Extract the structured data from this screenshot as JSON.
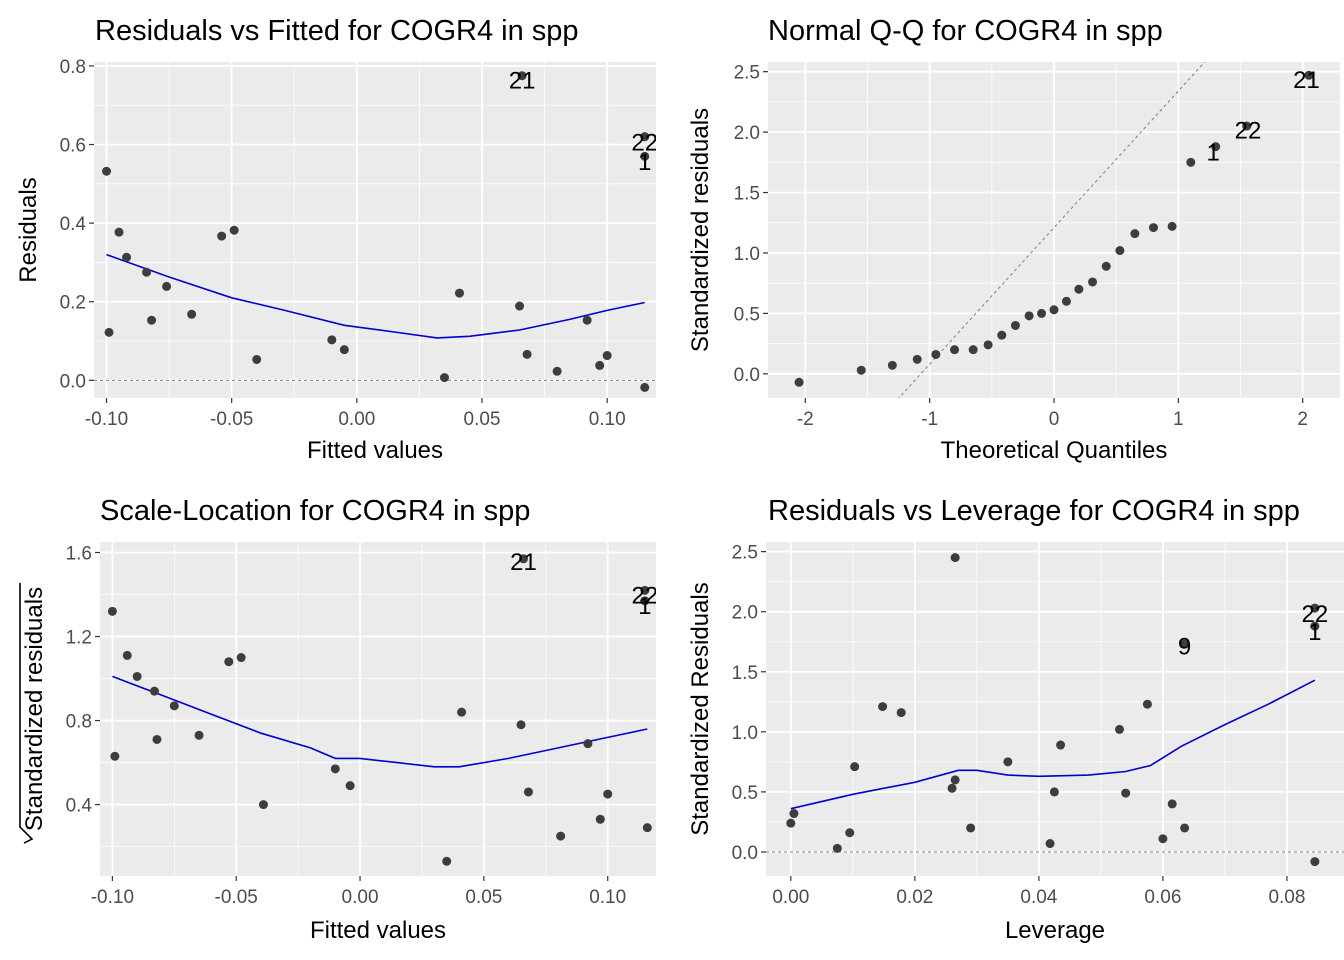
{
  "chart_data": [
    {
      "id": "rvf",
      "type": "scatter",
      "title": "Residuals vs Fitted for COGR4 in spp",
      "xlabel": "Fitted values",
      "ylabel": "Residuals",
      "ylabel_sqrt": false,
      "xlim": [
        -0.105,
        0.1195
      ],
      "ylim": [
        -0.045,
        0.81
      ],
      "xticks": [
        -0.1,
        -0.05,
        0.0,
        0.05,
        0.1
      ],
      "xtick_labels": [
        "-0.10",
        "-0.05",
        "0.00",
        "0.05",
        "0.10"
      ],
      "yticks": [
        0.0,
        0.2,
        0.4,
        0.6,
        0.8
      ],
      "ytick_labels": [
        "0.0",
        "0.2",
        "0.4",
        "0.6",
        "0.8"
      ],
      "grid": true,
      "hline": 0,
      "diag": null,
      "points": [
        {
          "x": -0.1,
          "y": 0.532
        },
        {
          "x": -0.095,
          "y": 0.377
        },
        {
          "x": -0.092,
          "y": 0.313
        },
        {
          "x": -0.099,
          "y": 0.122
        },
        {
          "x": -0.084,
          "y": 0.275
        },
        {
          "x": -0.082,
          "y": 0.153
        },
        {
          "x": -0.076,
          "y": 0.239
        },
        {
          "x": -0.066,
          "y": 0.168
        },
        {
          "x": -0.054,
          "y": 0.367
        },
        {
          "x": -0.049,
          "y": 0.382
        },
        {
          "x": -0.04,
          "y": 0.053
        },
        {
          "x": -0.01,
          "y": 0.103
        },
        {
          "x": -0.005,
          "y": 0.078
        },
        {
          "x": 0.035,
          "y": 0.007
        },
        {
          "x": 0.041,
          "y": 0.222
        },
        {
          "x": 0.065,
          "y": 0.189
        },
        {
          "x": 0.066,
          "y": 0.775
        },
        {
          "x": 0.068,
          "y": 0.066
        },
        {
          "x": 0.08,
          "y": 0.023
        },
        {
          "x": 0.092,
          "y": 0.153
        },
        {
          "x": 0.097,
          "y": 0.038
        },
        {
          "x": 0.1,
          "y": 0.063
        },
        {
          "x": 0.115,
          "y": 0.57
        },
        {
          "x": 0.115,
          "y": 0.62
        },
        {
          "x": 0.115,
          "y": -0.018
        }
      ],
      "smooth": [
        {
          "x": -0.1,
          "y": 0.32
        },
        {
          "x": -0.075,
          "y": 0.263
        },
        {
          "x": -0.05,
          "y": 0.21
        },
        {
          "x": -0.03,
          "y": 0.18
        },
        {
          "x": -0.005,
          "y": 0.14
        },
        {
          "x": 0.015,
          "y": 0.123
        },
        {
          "x": 0.032,
          "y": 0.108
        },
        {
          "x": 0.045,
          "y": 0.112
        },
        {
          "x": 0.065,
          "y": 0.128
        },
        {
          "x": 0.085,
          "y": 0.155
        },
        {
          "x": 0.1,
          "y": 0.178
        },
        {
          "x": 0.115,
          "y": 0.198
        }
      ],
      "labels": [
        {
          "text": "21",
          "x": 0.066,
          "y": 0.765
        },
        {
          "text": "22",
          "x": 0.115,
          "y": 0.608
        },
        {
          "text": "1",
          "x": 0.115,
          "y": 0.558
        }
      ]
    },
    {
      "id": "qq",
      "type": "scatter",
      "title": "Normal Q-Q for COGR4 in spp",
      "xlabel": "Theoretical Quantiles",
      "ylabel": "Standardized residuals",
      "ylabel_sqrt": false,
      "xlim": [
        -2.3,
        2.3
      ],
      "ylim": [
        -0.2,
        2.58
      ],
      "xticks": [
        -2,
        -1,
        0,
        1,
        2
      ],
      "xtick_labels": [
        "-2",
        "-1",
        "0",
        "1",
        "2"
      ],
      "yticks": [
        0.0,
        0.5,
        1.0,
        1.5,
        2.0,
        2.5
      ],
      "ytick_labels": [
        "0.0",
        "0.5",
        "1.0",
        "1.5",
        "2.0",
        "2.5"
      ],
      "grid": true,
      "hline": null,
      "diag": {
        "slope": 1.13,
        "intercept": 1.21
      },
      "points": [
        {
          "x": -2.05,
          "y": -0.07
        },
        {
          "x": -1.55,
          "y": 0.03
        },
        {
          "x": -1.3,
          "y": 0.07
        },
        {
          "x": -1.1,
          "y": 0.12
        },
        {
          "x": -0.95,
          "y": 0.16
        },
        {
          "x": -0.8,
          "y": 0.2
        },
        {
          "x": -0.65,
          "y": 0.2
        },
        {
          "x": -0.53,
          "y": 0.24
        },
        {
          "x": -0.42,
          "y": 0.32
        },
        {
          "x": -0.31,
          "y": 0.4
        },
        {
          "x": -0.2,
          "y": 0.48
        },
        {
          "x": -0.1,
          "y": 0.5
        },
        {
          "x": 0.0,
          "y": 0.53
        },
        {
          "x": 0.1,
          "y": 0.6
        },
        {
          "x": 0.2,
          "y": 0.7
        },
        {
          "x": 0.31,
          "y": 0.76
        },
        {
          "x": 0.42,
          "y": 0.89
        },
        {
          "x": 0.53,
          "y": 1.02
        },
        {
          "x": 0.65,
          "y": 1.16
        },
        {
          "x": 0.8,
          "y": 1.21
        },
        {
          "x": 0.95,
          "y": 1.22
        },
        {
          "x": 1.1,
          "y": 1.75
        },
        {
          "x": 1.3,
          "y": 1.88
        },
        {
          "x": 1.55,
          "y": 2.05
        },
        {
          "x": 2.05,
          "y": 2.47
        }
      ],
      "smooth": [],
      "labels": [
        {
          "text": "21",
          "x": 2.03,
          "y": 2.44
        },
        {
          "text": "22",
          "x": 1.56,
          "y": 2.02
        },
        {
          "text": "1",
          "x": 1.28,
          "y": 1.84
        }
      ]
    },
    {
      "id": "sl",
      "type": "scatter",
      "title": "Scale-Location for COGR4 in spp",
      "xlabel": "Fitted values",
      "ylabel": "Standardized residuals",
      "ylabel_sqrt": true,
      "xlim": [
        -0.105,
        0.1195
      ],
      "ylim": [
        0.06,
        1.65
      ],
      "xticks": [
        -0.1,
        -0.05,
        0.0,
        0.05,
        0.1
      ],
      "xtick_labels": [
        "-0.10",
        "-0.05",
        "0.00",
        "0.05",
        "0.10"
      ],
      "yticks": [
        0.4,
        0.8,
        1.2,
        1.6
      ],
      "ytick_labels": [
        "0.4",
        "0.8",
        "1.2",
        "1.6"
      ],
      "grid": true,
      "hline": null,
      "diag": null,
      "points": [
        {
          "x": -0.1,
          "y": 1.32
        },
        {
          "x": -0.099,
          "y": 0.63
        },
        {
          "x": -0.094,
          "y": 1.11
        },
        {
          "x": -0.09,
          "y": 1.01
        },
        {
          "x": -0.083,
          "y": 0.94
        },
        {
          "x": -0.082,
          "y": 0.71
        },
        {
          "x": -0.075,
          "y": 0.87
        },
        {
          "x": -0.065,
          "y": 0.73
        },
        {
          "x": -0.053,
          "y": 1.08
        },
        {
          "x": -0.048,
          "y": 1.1
        },
        {
          "x": -0.039,
          "y": 0.4
        },
        {
          "x": -0.01,
          "y": 0.57
        },
        {
          "x": -0.004,
          "y": 0.49
        },
        {
          "x": 0.035,
          "y": 0.13
        },
        {
          "x": 0.041,
          "y": 0.84
        },
        {
          "x": 0.065,
          "y": 0.78
        },
        {
          "x": 0.066,
          "y": 1.57
        },
        {
          "x": 0.068,
          "y": 0.46
        },
        {
          "x": 0.081,
          "y": 0.25
        },
        {
          "x": 0.092,
          "y": 0.69
        },
        {
          "x": 0.097,
          "y": 0.33
        },
        {
          "x": 0.1,
          "y": 0.45
        },
        {
          "x": 0.115,
          "y": 1.37
        },
        {
          "x": 0.115,
          "y": 1.42
        },
        {
          "x": 0.116,
          "y": 0.29
        }
      ],
      "smooth": [
        {
          "x": -0.1,
          "y": 1.01
        },
        {
          "x": -0.08,
          "y": 0.92
        },
        {
          "x": -0.06,
          "y": 0.83
        },
        {
          "x": -0.04,
          "y": 0.74
        },
        {
          "x": -0.02,
          "y": 0.67
        },
        {
          "x": -0.01,
          "y": 0.62
        },
        {
          "x": 0.0,
          "y": 0.62
        },
        {
          "x": 0.015,
          "y": 0.6
        },
        {
          "x": 0.03,
          "y": 0.58
        },
        {
          "x": 0.04,
          "y": 0.58
        },
        {
          "x": 0.06,
          "y": 0.62
        },
        {
          "x": 0.08,
          "y": 0.67
        },
        {
          "x": 0.1,
          "y": 0.72
        },
        {
          "x": 0.116,
          "y": 0.76
        }
      ],
      "labels": [
        {
          "text": "21",
          "x": 0.066,
          "y": 1.56
        },
        {
          "text": "22",
          "x": 0.115,
          "y": 1.4
        },
        {
          "text": "1",
          "x": 0.115,
          "y": 1.35
        }
      ]
    },
    {
      "id": "rvl",
      "type": "scatter",
      "title": "Residuals vs Leverage for COGR4 in spp",
      "xlabel": "Leverage",
      "ylabel": "Standardized Residuals",
      "ylabel_sqrt": false,
      "xlim": [
        -0.004,
        0.0892
      ],
      "ylim": [
        -0.2,
        2.58
      ],
      "xticks": [
        0.0,
        0.02,
        0.04,
        0.06,
        0.08
      ],
      "xtick_labels": [
        "0.00",
        "0.02",
        "0.04",
        "0.06",
        "0.08"
      ],
      "yticks": [
        0.0,
        0.5,
        1.0,
        1.5,
        2.0,
        2.5
      ],
      "ytick_labels": [
        "0.0",
        "0.5",
        "1.0",
        "1.5",
        "2.0",
        "2.5"
      ],
      "grid": true,
      "hline": 0,
      "diag": null,
      "points": [
        {
          "x": 0.0,
          "y": 0.24
        },
        {
          "x": 0.0005,
          "y": 0.32
        },
        {
          "x": 0.0075,
          "y": 0.03
        },
        {
          "x": 0.0095,
          "y": 0.16
        },
        {
          "x": 0.0103,
          "y": 0.71
        },
        {
          "x": 0.0148,
          "y": 1.21
        },
        {
          "x": 0.0178,
          "y": 1.16
        },
        {
          "x": 0.026,
          "y": 0.53
        },
        {
          "x": 0.0265,
          "y": 0.6
        },
        {
          "x": 0.0265,
          "y": 2.45
        },
        {
          "x": 0.029,
          "y": 0.2
        },
        {
          "x": 0.035,
          "y": 0.75
        },
        {
          "x": 0.0418,
          "y": 0.07
        },
        {
          "x": 0.0425,
          "y": 0.5
        },
        {
          "x": 0.0435,
          "y": 0.89
        },
        {
          "x": 0.053,
          "y": 1.02
        },
        {
          "x": 0.054,
          "y": 0.49
        },
        {
          "x": 0.0575,
          "y": 1.23
        },
        {
          "x": 0.06,
          "y": 0.11
        },
        {
          "x": 0.0615,
          "y": 0.4
        },
        {
          "x": 0.0635,
          "y": 0.2
        },
        {
          "x": 0.0635,
          "y": 1.73
        },
        {
          "x": 0.0845,
          "y": 1.88
        },
        {
          "x": 0.0845,
          "y": 2.03
        },
        {
          "x": 0.0845,
          "y": -0.08
        }
      ],
      "smooth": [
        {
          "x": 0.0,
          "y": 0.36
        },
        {
          "x": 0.01,
          "y": 0.48
        },
        {
          "x": 0.02,
          "y": 0.58
        },
        {
          "x": 0.027,
          "y": 0.68
        },
        {
          "x": 0.03,
          "y": 0.68
        },
        {
          "x": 0.035,
          "y": 0.64
        },
        {
          "x": 0.04,
          "y": 0.63
        },
        {
          "x": 0.048,
          "y": 0.64
        },
        {
          "x": 0.054,
          "y": 0.67
        },
        {
          "x": 0.058,
          "y": 0.72
        },
        {
          "x": 0.063,
          "y": 0.88
        },
        {
          "x": 0.07,
          "y": 1.06
        },
        {
          "x": 0.077,
          "y": 1.23
        },
        {
          "x": 0.0845,
          "y": 1.43
        }
      ],
      "labels": [
        {
          "text": "22",
          "x": 0.0845,
          "y": 1.99
        },
        {
          "text": "1",
          "x": 0.0845,
          "y": 1.84
        },
        {
          "text": "9",
          "x": 0.0635,
          "y": 1.72
        }
      ]
    }
  ]
}
